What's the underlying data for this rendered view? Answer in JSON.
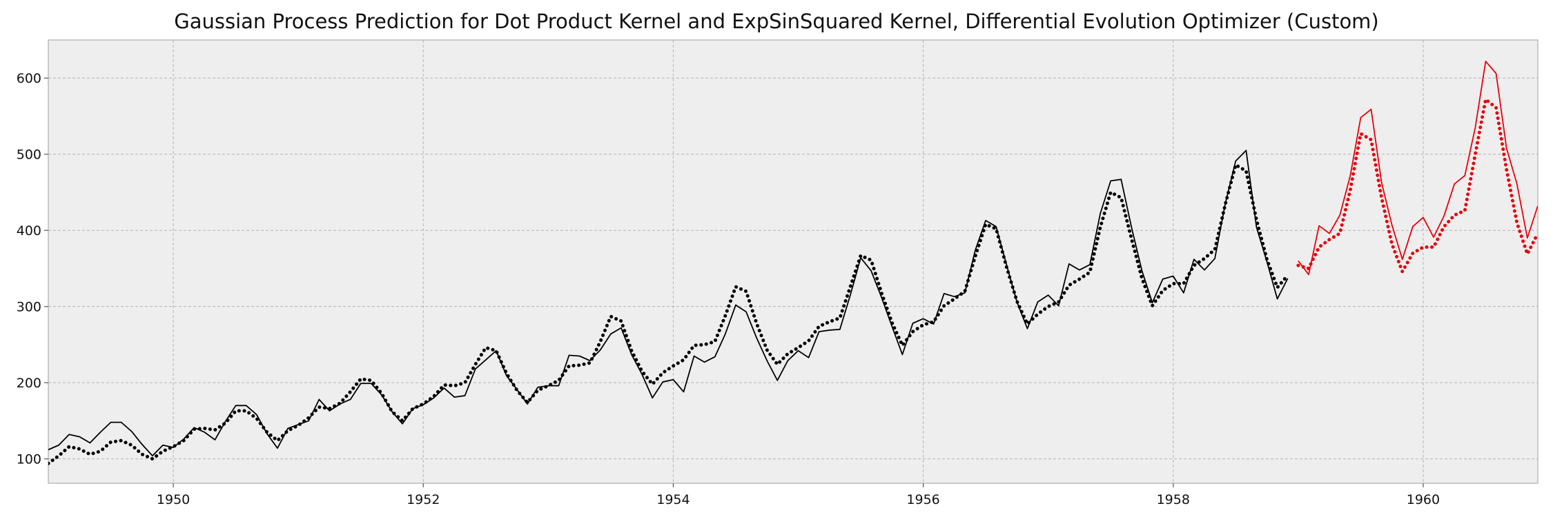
{
  "chart_data": {
    "type": "line",
    "title": "Gaussian Process Prediction for Dot Product Kernel and ExpSinSquared Kernel,  Differential Evolution Optimizer (Custom)",
    "xlabel": "",
    "ylabel": "",
    "xlim": [
      1949.0,
      1960.917
    ],
    "ylim": [
      68,
      650
    ],
    "grid": true,
    "legend": "none",
    "x_ticks": [
      1950,
      1952,
      1954,
      1956,
      1958,
      1960
    ],
    "y_ticks": [
      100,
      200,
      300,
      400,
      500,
      600
    ],
    "x_tick_labels": [
      "1950",
      "1952",
      "1954",
      "1956",
      "1958",
      "1960"
    ],
    "y_tick_labels": [
      "100",
      "200",
      "300",
      "400",
      "500",
      "600"
    ],
    "series": [
      {
        "color": "#000000",
        "style": "solid",
        "x_start": 1949.0,
        "x_step": 0.08333,
        "values": [
          112,
          118,
          132,
          129,
          121,
          135,
          148,
          148,
          136,
          119,
          104,
          118,
          115,
          126,
          141,
          135,
          125,
          149,
          170,
          170,
          158,
          133,
          114,
          140,
          145,
          150,
          178,
          163,
          172,
          178,
          199,
          199,
          184,
          162,
          146,
          166,
          171,
          180,
          193,
          181,
          183,
          218,
          230,
          242,
          209,
          191,
          172,
          194,
          196,
          196,
          236,
          235,
          229,
          243,
          264,
          272,
          237,
          211,
          180,
          201,
          204,
          188,
          235,
          227,
          234,
          264,
          302,
          293,
          259,
          229,
          203,
          229,
          242,
          233,
          267,
          269,
          270,
          315,
          364,
          347,
          312,
          274,
          237,
          278,
          284,
          277,
          317,
          313,
          318,
          374,
          413,
          405,
          355,
          306,
          271,
          306,
          315,
          301,
          356,
          348,
          355,
          422,
          465,
          467,
          404,
          347,
          305,
          336,
          340,
          318,
          362,
          348,
          363,
          435,
          491,
          505,
          404,
          359,
          310,
          337
        ]
      },
      {
        "color": "#000000",
        "style": "dotted",
        "x_start": 1949.0,
        "x_step": 0.08333,
        "values": [
          94,
          104,
          116,
          113,
          106,
          110,
          122,
          124,
          118,
          106,
          100,
          110,
          116,
          124,
          139,
          140,
          138,
          147,
          163,
          163,
          153,
          135,
          124,
          137,
          144,
          154,
          168,
          166,
          173,
          188,
          205,
          203,
          186,
          162,
          150,
          166,
          172,
          182,
          197,
          196,
          200,
          224,
          246,
          242,
          212,
          190,
          174,
          190,
          196,
          203,
          222,
          223,
          226,
          254,
          287,
          281,
          242,
          215,
          198,
          213,
          222,
          230,
          249,
          250,
          254,
          288,
          326,
          320,
          278,
          243,
          224,
          238,
          246,
          255,
          274,
          280,
          285,
          326,
          367,
          361,
          318,
          279,
          249,
          267,
          276,
          280,
          301,
          310,
          320,
          366,
          408,
          402,
          352,
          307,
          277,
          290,
          300,
          306,
          328,
          336,
          345,
          404,
          450,
          443,
          389,
          337,
          301,
          321,
          330,
          330,
          354,
          363,
          375,
          434,
          486,
          478,
          414,
          362,
          325,
          341
        ]
      },
      {
        "color": "#e8000b",
        "style": "solid",
        "x_start": 1959.0,
        "x_step": 0.08333,
        "values": [
          360,
          342,
          406,
          396,
          420,
          472,
          548,
          559,
          463,
          407,
          362,
          405,
          417,
          391,
          419,
          461,
          472,
          535,
          622,
          606,
          508,
          461,
          390,
          432
        ]
      },
      {
        "color": "#e8000b",
        "style": "dotted",
        "x_start": 1959.0,
        "x_step": 0.08333,
        "values": [
          354,
          350,
          378,
          388,
          396,
          453,
          527,
          519,
          443,
          382,
          346,
          370,
          378,
          378,
          405,
          420,
          426,
          500,
          572,
          561,
          480,
          410,
          369,
          396
        ]
      }
    ]
  }
}
